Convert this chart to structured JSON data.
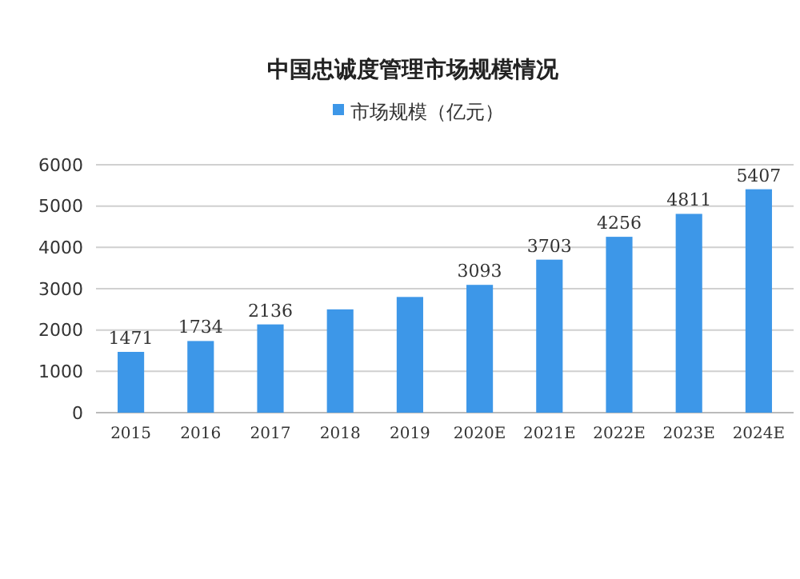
{
  "chart_data": {
    "type": "bar",
    "title": "中国忠诚度管理市场规模情况",
    "categories": [
      "2015",
      "2016",
      "2017",
      "2018",
      "2019",
      "2020E",
      "2021E",
      "2022E",
      "2023E",
      "2024E"
    ],
    "series": [
      {
        "name": "市场规模（亿元）",
        "color": "#3d97e8",
        "values": [
          1471,
          1734,
          2136,
          2500,
          2800,
          3093,
          3703,
          4256,
          4811,
          5407
        ],
        "value_labels": [
          "1471",
          "1734",
          "2136",
          null,
          null,
          "3093",
          "3703",
          "4256",
          "4811",
          "5407"
        ]
      }
    ],
    "ylim": [
      0,
      6000
    ],
    "yticks": [
      0,
      1000,
      2000,
      3000,
      4000,
      5000,
      6000
    ],
    "grid": "y",
    "legend": "top"
  }
}
